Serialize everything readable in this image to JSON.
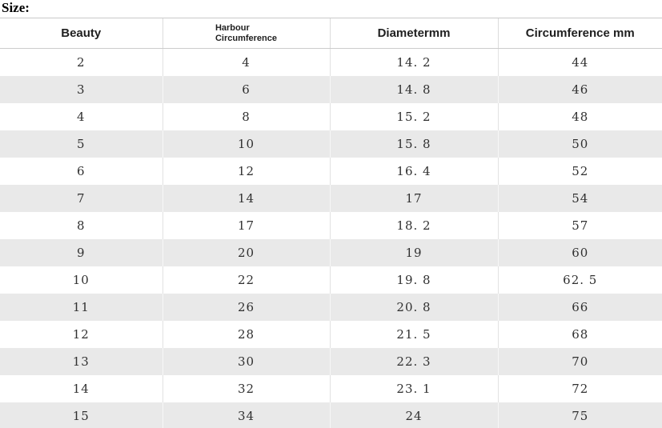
{
  "size_label": "Size:",
  "colors": {
    "stripe": "#e9e9e9",
    "cell_border": "#e2e2e2",
    "header_border": "#cccccc",
    "text": "#303030"
  },
  "chart_data": {
    "type": "table",
    "title": "Size:",
    "columns": [
      "Beauty",
      "Harbour\nCircumference",
      "Diametermm",
      "Circumference mm"
    ],
    "rows": [
      [
        "2",
        "4",
        "14. 2",
        "44"
      ],
      [
        "3",
        "6",
        "14. 8",
        "46"
      ],
      [
        "4",
        "8",
        "15. 2",
        "48"
      ],
      [
        "5",
        "10",
        "15. 8",
        "50"
      ],
      [
        "6",
        "12",
        "16. 4",
        "52"
      ],
      [
        "7",
        "14",
        "17",
        "54"
      ],
      [
        "8",
        "17",
        "18. 2",
        "57"
      ],
      [
        "9",
        "20",
        "19",
        "60"
      ],
      [
        "10",
        "22",
        "19. 8",
        "62. 5"
      ],
      [
        "11",
        "26",
        "20. 8",
        "66"
      ],
      [
        "12",
        "28",
        "21. 5",
        "68"
      ],
      [
        "13",
        "30",
        "22. 3",
        "70"
      ],
      [
        "14",
        "32",
        "23. 1",
        "72"
      ],
      [
        "15",
        "34",
        "24",
        "75"
      ]
    ]
  }
}
